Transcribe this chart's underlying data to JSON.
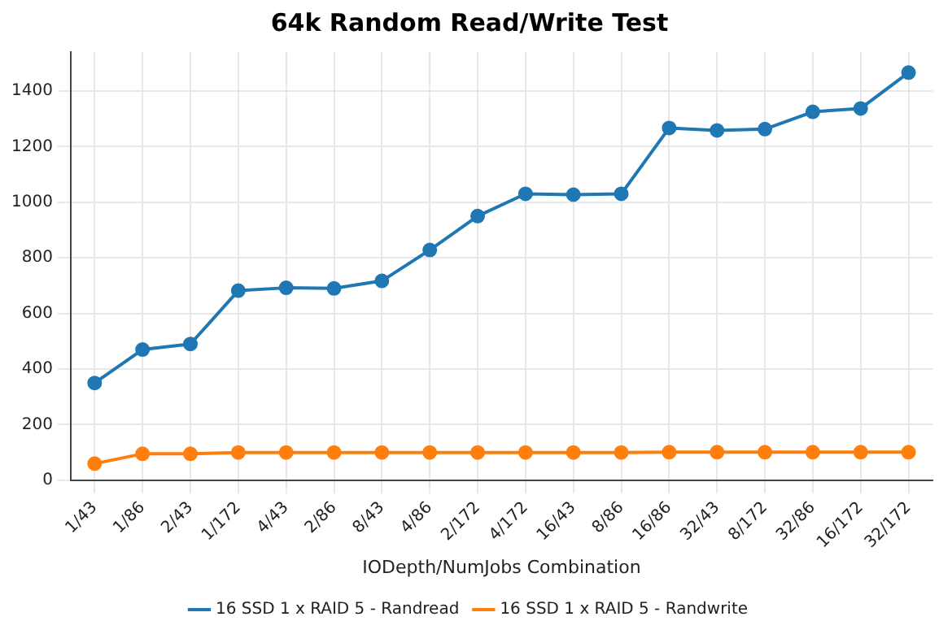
{
  "chart_data": {
    "type": "line",
    "title": "64k Random Read/Write Test",
    "xlabel": "IODepth/NumJobs Combination",
    "categories": [
      "1/43",
      "1/86",
      "2/43",
      "1/172",
      "4/43",
      "2/86",
      "8/43",
      "4/86",
      "2/172",
      "4/172",
      "16/43",
      "8/86",
      "16/86",
      "32/43",
      "8/172",
      "32/86",
      "16/172",
      "32/172"
    ],
    "series": [
      {
        "name": "16 SSD 1 x RAID 5 - Randread",
        "color": "#1f77b4",
        "values": [
          350,
          470,
          490,
          682,
          692,
          690,
          717,
          828,
          950,
          1030,
          1027,
          1030,
          1267,
          1258,
          1263,
          1325,
          1337,
          1466
        ]
      },
      {
        "name": "16 SSD 1 x RAID 5 - Randwrite",
        "color": "#ff7f0e",
        "values": [
          60,
          95,
          95,
          100,
          100,
          100,
          100,
          100,
          100,
          100,
          100,
          100,
          101,
          101,
          101,
          101,
          101,
          101
        ]
      }
    ],
    "ylim": [
      0,
      1540
    ],
    "yticks": [
      0,
      200,
      400,
      600,
      800,
      1000,
      1200,
      1400
    ],
    "grid": true,
    "legend": "bottom",
    "marker": "circle",
    "line_style": "solid"
  }
}
